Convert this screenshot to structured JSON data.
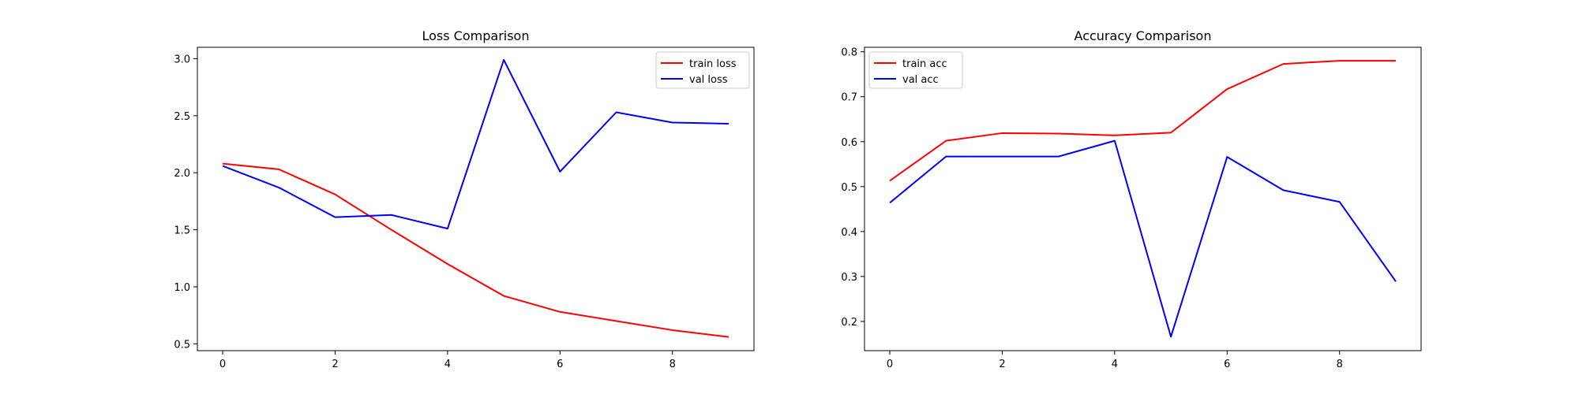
{
  "chart_data": [
    {
      "type": "line",
      "title": "Loss Comparison",
      "xlabel": "",
      "ylabel": "",
      "x": [
        0,
        1,
        2,
        3,
        4,
        5,
        6,
        7,
        8,
        9
      ],
      "xlim": [
        -0.45,
        9.45
      ],
      "ylim": [
        0.44,
        3.1
      ],
      "xticks": [
        0,
        2,
        4,
        6,
        8
      ],
      "yticks": [
        0.5,
        1.0,
        1.5,
        2.0,
        2.5,
        3.0
      ],
      "ytick_format": 1,
      "legend": "top-right",
      "grid": false,
      "series": [
        {
          "name": "train loss",
          "color": "#ff0000",
          "values": [
            2.08,
            2.03,
            1.81,
            1.5,
            1.2,
            0.92,
            0.78,
            0.7,
            0.62,
            0.56
          ]
        },
        {
          "name": "val loss",
          "color": "#0000ff",
          "values": [
            2.06,
            1.87,
            1.61,
            1.63,
            1.51,
            2.99,
            2.01,
            2.53,
            2.44,
            2.43
          ]
        }
      ]
    },
    {
      "type": "line",
      "title": "Accuracy Comparison",
      "xlabel": "",
      "ylabel": "",
      "x": [
        0,
        1,
        2,
        3,
        4,
        5,
        6,
        7,
        8,
        9
      ],
      "xlim": [
        -0.45,
        9.45
      ],
      "ylim": [
        0.135,
        0.81
      ],
      "xticks": [
        0,
        2,
        4,
        6,
        8
      ],
      "yticks": [
        0.2,
        0.3,
        0.4,
        0.5,
        0.6,
        0.7,
        0.8
      ],
      "ytick_format": 1,
      "legend": "top-left",
      "grid": false,
      "series": [
        {
          "name": "train acc",
          "color": "#ff0000",
          "values": [
            0.513,
            0.602,
            0.619,
            0.618,
            0.614,
            0.62,
            0.717,
            0.773,
            0.78,
            0.78
          ]
        },
        {
          "name": "val acc",
          "color": "#0000ff",
          "values": [
            0.464,
            0.567,
            0.567,
            0.567,
            0.602,
            0.166,
            0.566,
            0.492,
            0.466,
            0.289
          ]
        }
      ]
    }
  ]
}
